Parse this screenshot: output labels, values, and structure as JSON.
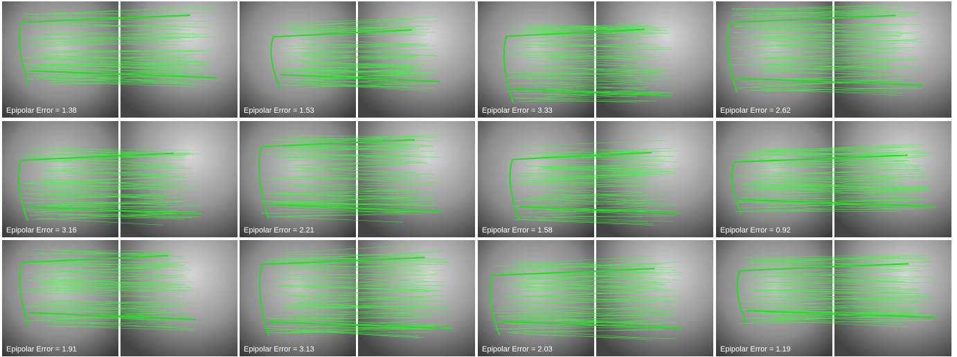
{
  "panels": [
    {
      "caption": "Epipolar Error = 1.38"
    },
    {
      "caption": "Epipolar Error = 1.53"
    },
    {
      "caption": "Epipolar Error = 3.33"
    },
    {
      "caption": "Epipolar Error = 2.62"
    },
    {
      "caption": "Epipolar Error = 3.16"
    },
    {
      "caption": "Epipolar Error = 2.21"
    },
    {
      "caption": "Epipolar Error = 1.58"
    },
    {
      "caption": "Epipolar Error = 0.92"
    },
    {
      "caption": "Epipolar Error = 1.91"
    },
    {
      "caption": "Epipolar Error = 3.13"
    },
    {
      "caption": "Epipolar Error = 2.03"
    },
    {
      "caption": "Epipolar Error = 1.19"
    }
  ]
}
